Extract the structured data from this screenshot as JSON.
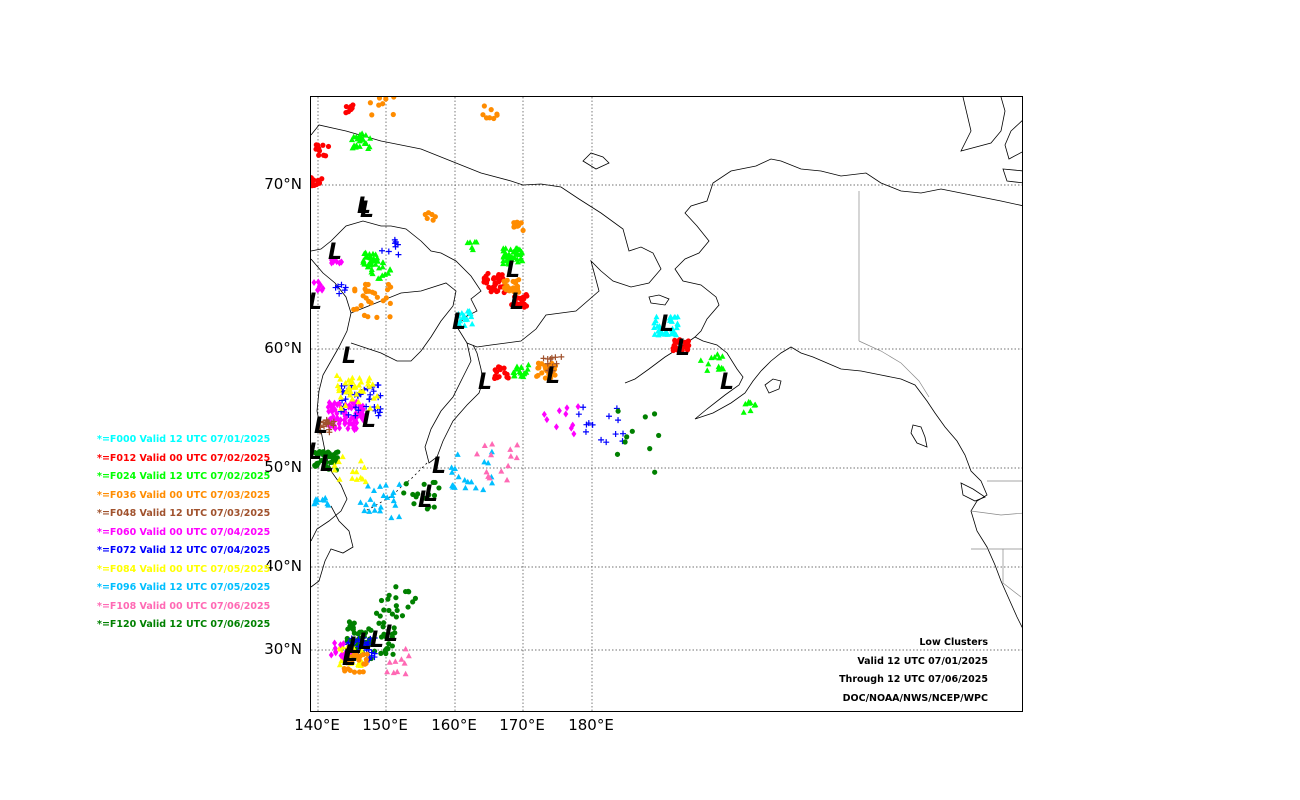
{
  "map": {
    "lat_labels": [
      "70°N",
      "60°N",
      "50°N",
      "40°N",
      "30°N"
    ],
    "lon_labels": [
      "140°E",
      "150°E",
      "160°E",
      "170°E",
      "180°E"
    ],
    "low_symbol": "L"
  },
  "legend": {
    "items": [
      {
        "label": "*=F000 Valid 12 UTC 07/01/2025",
        "color": "#00ffff"
      },
      {
        "label": "*=F012 Valid 00 UTC 07/02/2025",
        "color": "#ff0000"
      },
      {
        "label": "*=F024 Valid 12 UTC 07/02/2025",
        "color": "#00ff00"
      },
      {
        "label": "*=F036 Valid 00 UTC 07/03/2025",
        "color": "#ff8c00"
      },
      {
        "label": "*=F048 Valid 12 UTC 07/03/2025",
        "color": "#a0522d"
      },
      {
        "label": "*=F060 Valid 00 UTC 07/04/2025",
        "color": "#ff00ff"
      },
      {
        "label": "*=F072 Valid 12 UTC 07/04/2025",
        "color": "#0000ff"
      },
      {
        "label": "*=F084 Valid 00 UTC 07/05/2025",
        "color": "#ffff00"
      },
      {
        "label": "*=F096 Valid 12 UTC 07/05/2025",
        "color": "#00bfff"
      },
      {
        "label": "*=F108 Valid 00 UTC 07/06/2025",
        "color": "#ff69b4"
      },
      {
        "label": "*=F120 Valid 12 UTC 07/06/2025",
        "color": "#008000"
      }
    ]
  },
  "info": {
    "line1": "Low Clusters",
    "line2": "Valid 12 UTC 07/01/2025",
    "line3": "Through 12 UTC 07/06/2025",
    "line4": "DOC/NOAA/NWS/NCEP/WPC"
  }
}
